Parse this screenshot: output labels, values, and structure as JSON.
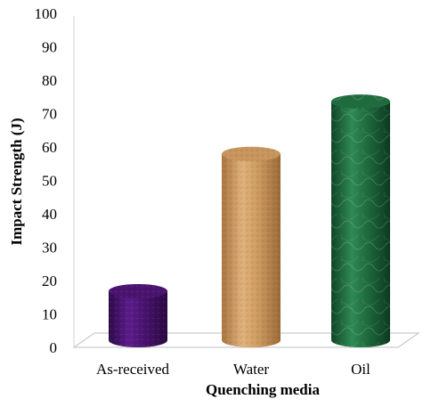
{
  "chart_data": {
    "type": "bar",
    "style": "3d-cylinder",
    "title": "",
    "xlabel": "Quenching media",
    "ylabel": "Impact Strength (J)",
    "categories": [
      "As-received",
      "Water",
      "Oil"
    ],
    "values": [
      15,
      57,
      73
    ],
    "ylim": [
      0,
      100
    ],
    "yticks": [
      0,
      10,
      20,
      30,
      40,
      50,
      60,
      70,
      80,
      90,
      100
    ],
    "grid": false,
    "legend": "none",
    "bar_colors": [
      "#4a1470",
      "#c9955e",
      "#1f6b3e"
    ]
  }
}
